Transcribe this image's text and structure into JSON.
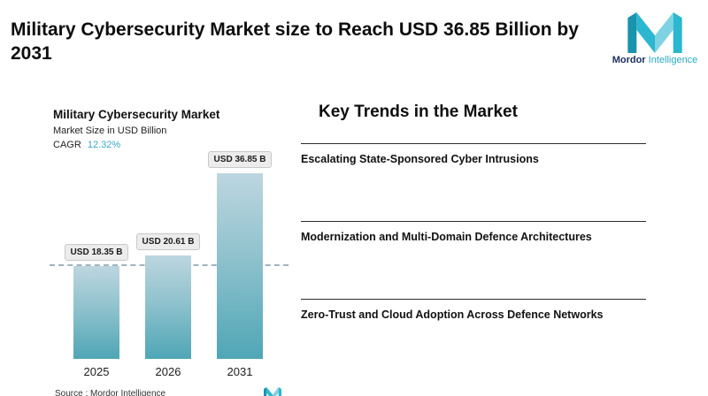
{
  "page": {
    "title": "Military Cybersecurity Market size to Reach USD 36.85 Billion by 2031"
  },
  "logo": {
    "bold": "Mordor",
    "light": " Intelligence",
    "teal": "#2bb7cf",
    "mid_teal": "#1a93ad",
    "navy": "#1a2e5a"
  },
  "chart_data": {
    "type": "bar",
    "title": "Military Cybersecurity Market",
    "subtitle": "Market Size in USD Billion",
    "cagr_label": "CAGR",
    "cagr_value": "12.32%",
    "categories": [
      "2025",
      "2026",
      "2031"
    ],
    "values": [
      18.35,
      20.61,
      36.85
    ],
    "value_labels": [
      "USD 18.35 B",
      "USD 20.61 B",
      "USD 36.85 B"
    ],
    "ylim": [
      0,
      40
    ],
    "dashed_reference": 18.35,
    "grid": false,
    "legend": "none",
    "bar_gradient_top": "#bdd6e0",
    "bar_gradient_bottom": "#4fa6b6",
    "source": "Source :  Mordor Intelligence"
  },
  "trends": {
    "heading": "Key Trends in the Market",
    "items": [
      "Escalating State-Sponsored Cyber Intrusions",
      "Modernization and Multi-Domain Defence Architectures",
      "Zero-Trust and Cloud Adoption Across Defence Networks"
    ]
  }
}
